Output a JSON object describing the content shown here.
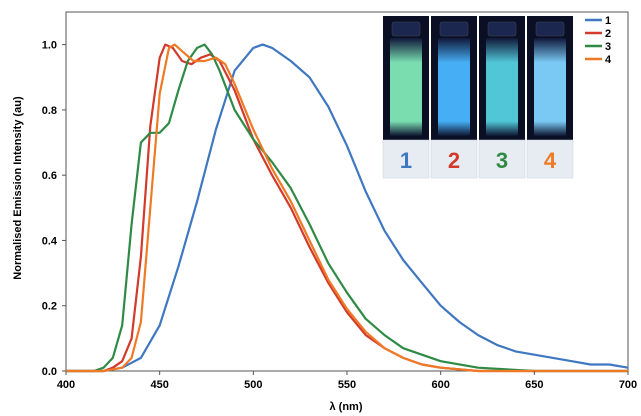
{
  "chart_data": {
    "type": "line",
    "title": "",
    "xlabel": "λ (nm)",
    "ylabel": "Normalised Emission Intensity (au)",
    "xlim": [
      400,
      700
    ],
    "ylim": [
      0,
      1.1
    ],
    "x_ticks": [
      "400",
      "450",
      "500",
      "550",
      "600",
      "650",
      "700"
    ],
    "y_ticks": [
      "0.0",
      "0.2",
      "0.4",
      "0.6",
      "0.8",
      "1.0"
    ],
    "grid": false,
    "legend_position": "top-right",
    "series": [
      {
        "name": "1",
        "color": "#3f77c0",
        "points": [
          [
            400,
            0
          ],
          [
            420,
            0
          ],
          [
            430,
            0.01
          ],
          [
            440,
            0.04
          ],
          [
            450,
            0.14
          ],
          [
            460,
            0.32
          ],
          [
            470,
            0.52
          ],
          [
            480,
            0.74
          ],
          [
            490,
            0.92
          ],
          [
            500,
            0.99
          ],
          [
            505,
            1.0
          ],
          [
            510,
            0.99
          ],
          [
            520,
            0.95
          ],
          [
            530,
            0.9
          ],
          [
            540,
            0.81
          ],
          [
            550,
            0.69
          ],
          [
            560,
            0.55
          ],
          [
            570,
            0.43
          ],
          [
            580,
            0.34
          ],
          [
            590,
            0.27
          ],
          [
            600,
            0.2
          ],
          [
            610,
            0.15
          ],
          [
            620,
            0.11
          ],
          [
            630,
            0.08
          ],
          [
            640,
            0.06
          ],
          [
            650,
            0.05
          ],
          [
            660,
            0.04
          ],
          [
            670,
            0.03
          ],
          [
            680,
            0.02
          ],
          [
            690,
            0.02
          ],
          [
            700,
            0.01
          ]
        ]
      },
      {
        "name": "2",
        "color": "#d23a2b",
        "points": [
          [
            400,
            0
          ],
          [
            420,
            0
          ],
          [
            425,
            0.01
          ],
          [
            430,
            0.03
          ],
          [
            435,
            0.1
          ],
          [
            440,
            0.35
          ],
          [
            445,
            0.75
          ],
          [
            450,
            0.96
          ],
          [
            453,
            1.0
          ],
          [
            457,
            0.99
          ],
          [
            462,
            0.95
          ],
          [
            467,
            0.94
          ],
          [
            472,
            0.96
          ],
          [
            477,
            0.97
          ],
          [
            482,
            0.95
          ],
          [
            490,
            0.86
          ],
          [
            500,
            0.71
          ],
          [
            510,
            0.6
          ],
          [
            520,
            0.5
          ],
          [
            530,
            0.38
          ],
          [
            540,
            0.27
          ],
          [
            550,
            0.18
          ],
          [
            560,
            0.11
          ],
          [
            570,
            0.07
          ],
          [
            580,
            0.04
          ],
          [
            590,
            0.02
          ],
          [
            600,
            0.01
          ],
          [
            620,
            0
          ],
          [
            700,
            0
          ]
        ]
      },
      {
        "name": "3",
        "color": "#2f8a45",
        "points": [
          [
            400,
            0
          ],
          [
            415,
            0
          ],
          [
            420,
            0.01
          ],
          [
            425,
            0.04
          ],
          [
            430,
            0.14
          ],
          [
            435,
            0.45
          ],
          [
            440,
            0.7
          ],
          [
            445,
            0.73
          ],
          [
            450,
            0.73
          ],
          [
            455,
            0.76
          ],
          [
            460,
            0.86
          ],
          [
            465,
            0.95
          ],
          [
            470,
            0.99
          ],
          [
            474,
            1.0
          ],
          [
            478,
            0.97
          ],
          [
            482,
            0.92
          ],
          [
            490,
            0.8
          ],
          [
            500,
            0.71
          ],
          [
            510,
            0.64
          ],
          [
            520,
            0.56
          ],
          [
            530,
            0.45
          ],
          [
            540,
            0.33
          ],
          [
            550,
            0.24
          ],
          [
            560,
            0.16
          ],
          [
            570,
            0.11
          ],
          [
            580,
            0.07
          ],
          [
            590,
            0.05
          ],
          [
            600,
            0.03
          ],
          [
            620,
            0.01
          ],
          [
            650,
            0
          ],
          [
            700,
            0
          ]
        ]
      },
      {
        "name": "4",
        "color": "#ef7a26",
        "points": [
          [
            400,
            0
          ],
          [
            420,
            0
          ],
          [
            430,
            0.01
          ],
          [
            435,
            0.04
          ],
          [
            440,
            0.15
          ],
          [
            445,
            0.5
          ],
          [
            450,
            0.85
          ],
          [
            455,
            0.99
          ],
          [
            458,
            1.0
          ],
          [
            462,
            0.98
          ],
          [
            468,
            0.95
          ],
          [
            474,
            0.95
          ],
          [
            480,
            0.96
          ],
          [
            485,
            0.94
          ],
          [
            490,
            0.88
          ],
          [
            500,
            0.74
          ],
          [
            510,
            0.62
          ],
          [
            520,
            0.52
          ],
          [
            530,
            0.4
          ],
          [
            540,
            0.28
          ],
          [
            550,
            0.19
          ],
          [
            560,
            0.12
          ],
          [
            570,
            0.07
          ],
          [
            580,
            0.04
          ],
          [
            590,
            0.02
          ],
          [
            600,
            0.01
          ],
          [
            620,
            0
          ],
          [
            700,
            0
          ]
        ]
      }
    ]
  },
  "inset": {
    "vials": [
      {
        "label": "1",
        "glow": "#7fe8b8",
        "label_color": "#3f77c0"
      },
      {
        "label": "2",
        "glow": "#49b6ff",
        "label_color": "#d23a2b"
      },
      {
        "label": "3",
        "glow": "#55cfe0",
        "label_color": "#2f8a45"
      },
      {
        "label": "4",
        "glow": "#7fd3ff",
        "label_color": "#ef7a26"
      }
    ]
  }
}
